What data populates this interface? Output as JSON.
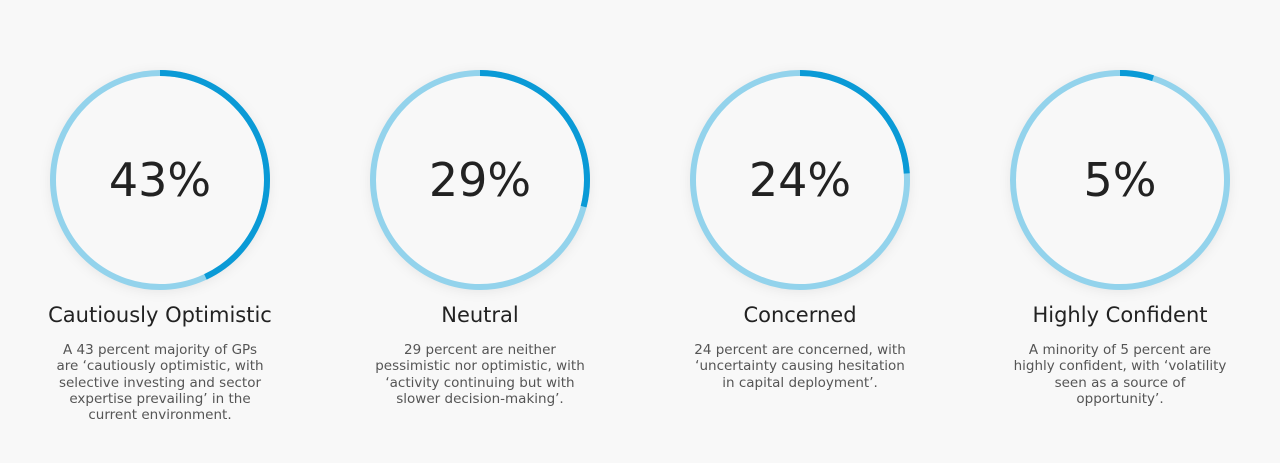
{
  "chart_data": {
    "type": "donut-gauges",
    "colors": {
      "track": "#93d3ec",
      "fill": "#0a9ad6",
      "background": "#f8f8f8"
    },
    "items": [
      {
        "value": 43,
        "label": "43%",
        "title": "Cautiously Optimistic",
        "description": "A 43 percent majority of GPs are ‘cautiously optimistic, with selective investing and sector expertise prevailing’ in the current environment."
      },
      {
        "value": 29,
        "label": "29%",
        "title": "Neutral",
        "description": "29 percent are neither pessimistic nor optimistic, with ‘activity continuing but with slower decision-making’."
      },
      {
        "value": 24,
        "label": "24%",
        "title": "Concerned",
        "description": "24 percent are concerned, with ‘uncertainty causing hesitation in capital deployment’."
      },
      {
        "value": 5,
        "label": "5%",
        "title": "Highly Confident",
        "description": "A minority of 5 percent are highly confident, with ‘volatility seen as a source of opportunity’."
      }
    ]
  }
}
